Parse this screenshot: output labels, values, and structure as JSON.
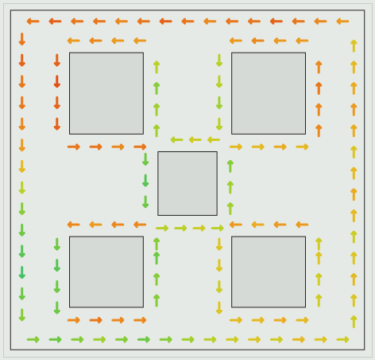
{
  "chart_data": {
    "type": "vector",
    "xlim": [
      0,
      100
    ],
    "ylim": [
      0,
      100
    ],
    "tick_labels": false,
    "speed_lim": [
      0,
      1
    ],
    "walls": [
      [
        2,
        2,
        98,
        98
      ],
      [
        18,
        14,
        38,
        37
      ],
      [
        62,
        14,
        82,
        37
      ],
      [
        42,
        42,
        58,
        60
      ],
      [
        18,
        66,
        38,
        86
      ],
      [
        62,
        66,
        82,
        86
      ]
    ],
    "arrows": [
      [
        8,
        5,
        270,
        0.8
      ],
      [
        14,
        5,
        270,
        0.85
      ],
      [
        20,
        5,
        270,
        0.8
      ],
      [
        26,
        5,
        270,
        0.8
      ],
      [
        32,
        5,
        270,
        0.75
      ],
      [
        38,
        5,
        270,
        0.8
      ],
      [
        44,
        5,
        270,
        0.85
      ],
      [
        50,
        5,
        270,
        0.8
      ],
      [
        56,
        5,
        270,
        0.75
      ],
      [
        62,
        5,
        270,
        0.8
      ],
      [
        68,
        5,
        270,
        0.8
      ],
      [
        74,
        5,
        270,
        0.85
      ],
      [
        80,
        5,
        270,
        0.8
      ],
      [
        86,
        5,
        270,
        0.75
      ],
      [
        92,
        5,
        270,
        0.7
      ],
      [
        5,
        10,
        180,
        0.8
      ],
      [
        5,
        16,
        180,
        0.85
      ],
      [
        5,
        22,
        180,
        0.8
      ],
      [
        5,
        28,
        180,
        0.8
      ],
      [
        5,
        34,
        180,
        0.75
      ],
      [
        5,
        40,
        180,
        0.7
      ],
      [
        5,
        46,
        180,
        0.6
      ],
      [
        5,
        52,
        180,
        0.45
      ],
      [
        5,
        58,
        180,
        0.35
      ],
      [
        5,
        64,
        180,
        0.3
      ],
      [
        5,
        70,
        180,
        0.25
      ],
      [
        5,
        76,
        180,
        0.2
      ],
      [
        5,
        82,
        180,
        0.3
      ],
      [
        5,
        88,
        180,
        0.35
      ],
      [
        8,
        95,
        90,
        0.35
      ],
      [
        14,
        95,
        90,
        0.3
      ],
      [
        20,
        95,
        90,
        0.35
      ],
      [
        26,
        95,
        90,
        0.4
      ],
      [
        32,
        95,
        90,
        0.35
      ],
      [
        38,
        95,
        90,
        0.3
      ],
      [
        44,
        95,
        90,
        0.35
      ],
      [
        50,
        95,
        90,
        0.4
      ],
      [
        56,
        95,
        90,
        0.45
      ],
      [
        62,
        95,
        90,
        0.5
      ],
      [
        68,
        95,
        90,
        0.55
      ],
      [
        74,
        95,
        90,
        0.5
      ],
      [
        80,
        95,
        90,
        0.6
      ],
      [
        86,
        95,
        90,
        0.55
      ],
      [
        92,
        95,
        90,
        0.5
      ],
      [
        95,
        90,
        0,
        0.5
      ],
      [
        95,
        84,
        0,
        0.55
      ],
      [
        95,
        78,
        0,
        0.6
      ],
      [
        95,
        72,
        0,
        0.55
      ],
      [
        95,
        66,
        0,
        0.5
      ],
      [
        95,
        60,
        0,
        0.6
      ],
      [
        95,
        54,
        0,
        0.65
      ],
      [
        95,
        48,
        0,
        0.6
      ],
      [
        95,
        42,
        0,
        0.55
      ],
      [
        95,
        36,
        0,
        0.65
      ],
      [
        95,
        30,
        0,
        0.7
      ],
      [
        95,
        24,
        0,
        0.65
      ],
      [
        95,
        18,
        0,
        0.6
      ],
      [
        95,
        12,
        0,
        0.55
      ],
      [
        37,
        10.5,
        270,
        0.7
      ],
      [
        31,
        10.5,
        270,
        0.7
      ],
      [
        25,
        10.5,
        270,
        0.75
      ],
      [
        19,
        10.5,
        270,
        0.7
      ],
      [
        14.5,
        16,
        180,
        0.85
      ],
      [
        14.5,
        22,
        180,
        0.9
      ],
      [
        14.5,
        28,
        180,
        0.85
      ],
      [
        14.5,
        34,
        180,
        0.85
      ],
      [
        19,
        40.5,
        90,
        0.8
      ],
      [
        25,
        40.5,
        90,
        0.8
      ],
      [
        31,
        40.5,
        90,
        0.75
      ],
      [
        37,
        40.5,
        90,
        0.8
      ],
      [
        41.5,
        36,
        0,
        0.4
      ],
      [
        41.5,
        30,
        0,
        0.4
      ],
      [
        41.5,
        24,
        0,
        0.35
      ],
      [
        41.5,
        18,
        0,
        0.45
      ],
      [
        81,
        10.5,
        270,
        0.7
      ],
      [
        75,
        10.5,
        270,
        0.7
      ],
      [
        69,
        10.5,
        270,
        0.75
      ],
      [
        63,
        10.5,
        270,
        0.7
      ],
      [
        58.5,
        16,
        180,
        0.45
      ],
      [
        58.5,
        22,
        180,
        0.45
      ],
      [
        58.5,
        28,
        180,
        0.4
      ],
      [
        58.5,
        34,
        180,
        0.45
      ],
      [
        63,
        40.5,
        90,
        0.6
      ],
      [
        69,
        40.5,
        90,
        0.6
      ],
      [
        75,
        40.5,
        90,
        0.65
      ],
      [
        81,
        40.5,
        90,
        0.6
      ],
      [
        85.5,
        36,
        0,
        0.75
      ],
      [
        85.5,
        30,
        0,
        0.75
      ],
      [
        85.5,
        24,
        0,
        0.8
      ],
      [
        85.5,
        18,
        0,
        0.75
      ],
      [
        57,
        38.5,
        270,
        0.5
      ],
      [
        52,
        38.5,
        270,
        0.5
      ],
      [
        47,
        38.5,
        270,
        0.45
      ],
      [
        38.5,
        44,
        180,
        0.3
      ],
      [
        38.5,
        50,
        180,
        0.25
      ],
      [
        38.5,
        56,
        180,
        0.3
      ],
      [
        43,
        63.5,
        90,
        0.45
      ],
      [
        48,
        63.5,
        90,
        0.45
      ],
      [
        53,
        63.5,
        90,
        0.5
      ],
      [
        58,
        63.5,
        90,
        0.45
      ],
      [
        61.5,
        58,
        0,
        0.4
      ],
      [
        61.5,
        52,
        0,
        0.4
      ],
      [
        61.5,
        46,
        0,
        0.35
      ],
      [
        37,
        62.5,
        270,
        0.75
      ],
      [
        31,
        62.5,
        270,
        0.75
      ],
      [
        25,
        62.5,
        270,
        0.7
      ],
      [
        19,
        62.5,
        270,
        0.75
      ],
      [
        14.5,
        68,
        180,
        0.3
      ],
      [
        14.5,
        74,
        180,
        0.25
      ],
      [
        14.5,
        80,
        180,
        0.3
      ],
      [
        14.5,
        86,
        180,
        0.3
      ],
      [
        19,
        89.5,
        90,
        0.75
      ],
      [
        25,
        89.5,
        90,
        0.8
      ],
      [
        31,
        89.5,
        90,
        0.75
      ],
      [
        37,
        89.5,
        90,
        0.75
      ],
      [
        41.5,
        84,
        0,
        0.35
      ],
      [
        41.5,
        78,
        0,
        0.35
      ],
      [
        41.5,
        72,
        0,
        0.3
      ],
      [
        41.5,
        68,
        0,
        0.35
      ],
      [
        81,
        62.5,
        270,
        0.7
      ],
      [
        75,
        62.5,
        270,
        0.7
      ],
      [
        69,
        62.5,
        270,
        0.65
      ],
      [
        63,
        62.5,
        270,
        0.7
      ],
      [
        58.5,
        68,
        180,
        0.55
      ],
      [
        58.5,
        74,
        180,
        0.55
      ],
      [
        58.5,
        80,
        180,
        0.5
      ],
      [
        58.5,
        86,
        180,
        0.55
      ],
      [
        63,
        89.5,
        90,
        0.6
      ],
      [
        69,
        89.5,
        90,
        0.6
      ],
      [
        75,
        89.5,
        90,
        0.65
      ],
      [
        81,
        89.5,
        90,
        0.6
      ],
      [
        85.5,
        84,
        0,
        0.5
      ],
      [
        85.5,
        78,
        0,
        0.5
      ],
      [
        85.5,
        72,
        0,
        0.55
      ],
      [
        85.5,
        68,
        0,
        0.5
      ]
    ]
  }
}
